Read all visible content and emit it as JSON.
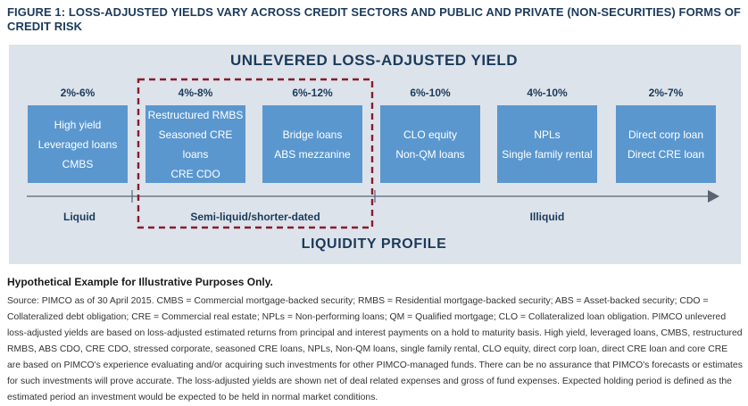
{
  "figure_title": "FIGURE 1: LOSS-ADJUSTED YIELDS VARY ACROSS CREDIT SECTORS AND PUBLIC AND PRIVATE (NON-SECURITIES) FORMS OF CREDIT RISK",
  "diagram": {
    "title": "UNLEVERED LOSS-ADJUSTED YIELD",
    "axis_title": "LIQUIDITY PROFILE",
    "columns": [
      {
        "yield": "2%-6%",
        "lines": [
          "High yield",
          "Leveraged loans",
          "CMBS"
        ]
      },
      {
        "yield": "4%-8%",
        "lines": [
          "Restructured RMBS",
          "Seasoned CRE loans",
          "CRE CDO"
        ]
      },
      {
        "yield": "6%-12%",
        "lines": [
          "Bridge loans",
          "ABS mezzanine"
        ]
      },
      {
        "yield": "6%-10%",
        "lines": [
          "CLO equity",
          "Non-QM loans"
        ]
      },
      {
        "yield": "4%-10%",
        "lines": [
          "NPLs",
          "Single family rental"
        ]
      },
      {
        "yield": "2%-7%",
        "lines": [
          "Direct corp loan",
          "Direct CRE loan"
        ]
      }
    ],
    "categories": {
      "liquid": "Liquid",
      "semi": "Semi-liquid/shorter-dated",
      "illiquid": "Illiquid"
    },
    "colors": {
      "box": "#5b97cf",
      "panel": "#dde3ea",
      "highlight_border": "#8b1a2e",
      "text": "#1b3a5c"
    }
  },
  "note": "Hypothetical Example for Illustrative Purposes Only.",
  "source": "Source: PIMCO as of 30 April 2015. CMBS = Commercial mortgage-backed security; RMBS = Residential mortgage-backed security; ABS = Asset-backed security; CDO = Collateralized debt obligation; CRE = Commercial real estate; NPLs = Non-performing loans; QM = Qualified mortgage; CLO = Collateralized loan obligation. PIMCO unlevered loss-adjusted yields are based on loss-adjusted estimated returns from principal and interest payments on a hold to maturity basis. High yield, leveraged loans, CMBS, restructured RMBS, ABS CDO, CRE CDO, stressed corporate, seasoned CRE loans, NPLs, Non-QM loans, single family rental, CLO equity, direct corp loan, direct CRE loan and core CRE are based on PIMCO's experience evaluating and/or acquiring such investments for other PIMCO-managed funds. There can be no assurance that PIMCO's forecasts or estimates for such investments will prove accurate. The loss-adjusted yields are shown net of deal related expenses and gross of fund expenses. Expected holding period is defined as the estimated period an investment would be expected to be held in normal market conditions."
}
